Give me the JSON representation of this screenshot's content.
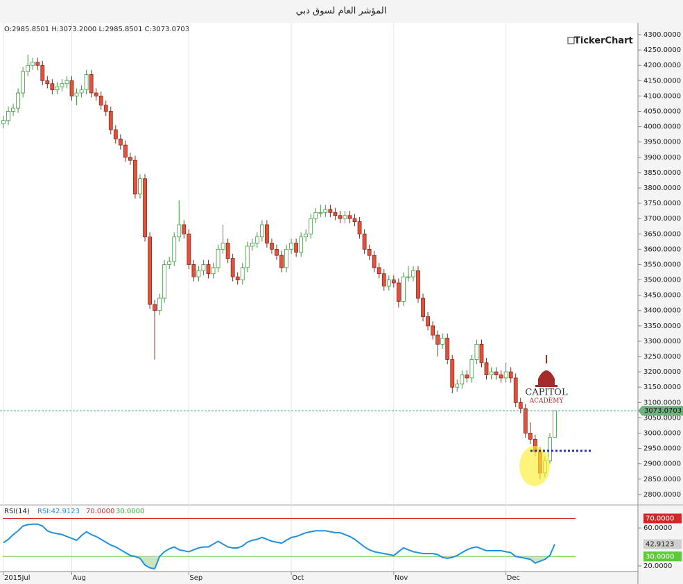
{
  "chart_data": [
    {
      "type": "candlestick",
      "title": "المؤشر العام لسوق دبي",
      "ohlc_label": "O:2985.8501 H:3073.2000 L:2985.8501 C:3073.0703",
      "watermark": "TickerChart",
      "logo_text": [
        "CAPITOL",
        "ACADEMY"
      ],
      "categories": [
        "2015Jul",
        null,
        null,
        null,
        null,
        null,
        null,
        null,
        null,
        null,
        null,
        null,
        null,
        null,
        "Aug",
        null,
        null,
        null,
        null,
        null,
        null,
        null,
        null,
        null,
        null,
        null,
        null,
        null,
        null,
        null,
        null,
        null,
        null,
        null,
        null,
        null,
        null,
        null,
        "Sep",
        null,
        null,
        null,
        null,
        null,
        null,
        null,
        null,
        null,
        null,
        null,
        null,
        null,
        null,
        null,
        null,
        null,
        null,
        null,
        null,
        "Oct",
        null,
        null,
        null,
        null,
        null,
        null,
        null,
        null,
        null,
        null,
        null,
        null,
        null,
        null,
        null,
        null,
        null,
        null,
        null,
        null,
        "Nov",
        null,
        null,
        null,
        null,
        null,
        null,
        null,
        null,
        null,
        null,
        null,
        null,
        null,
        null,
        null,
        null,
        null,
        null,
        null,
        null,
        null,
        null,
        "Dec",
        null,
        null,
        null,
        null,
        null,
        null,
        null,
        null,
        null,
        null
      ],
      "open": [
        4010,
        4020,
        4050,
        4060,
        4110,
        4180,
        4200,
        4210,
        4200,
        4150,
        4140,
        4120,
        4130,
        4140,
        4150,
        4100,
        4110,
        4120,
        4170,
        4110,
        4100,
        4070,
        4050,
        3990,
        3960,
        3940,
        3900,
        3890,
        3780,
        3830,
        3640,
        3420,
        3400,
        3440,
        3550,
        3560,
        3640,
        3680,
        3650,
        3550,
        3510,
        3530,
        3550,
        3520,
        3540,
        3600,
        3620,
        3570,
        3510,
        3500,
        3540,
        3610,
        3620,
        3640,
        3680,
        3620,
        3600,
        3580,
        3540,
        3600,
        3620,
        3590,
        3640,
        3650,
        3700,
        3720,
        3720,
        3730,
        3720,
        3710,
        3700,
        3710,
        3700,
        3690,
        3650,
        3600,
        3580,
        3540,
        3520,
        3480,
        3500,
        3490,
        3430,
        3510,
        3510,
        3530,
        3440,
        3380,
        3350,
        3320,
        3290,
        3310,
        3240,
        3150,
        3160,
        3190,
        3180,
        3240,
        3290,
        3230,
        3190,
        3200,
        3190,
        3180,
        3200,
        3180,
        3100,
        3080,
        3000,
        2980,
        2940,
        2870,
        2910,
        2985.8501
      ],
      "high": [
        4035,
        4065,
        4075,
        4125,
        4195,
        4235,
        4225,
        4225,
        4215,
        4165,
        4155,
        4145,
        4155,
        4165,
        4165,
        4125,
        4135,
        4185,
        4185,
        4125,
        4115,
        4085,
        4065,
        4005,
        3975,
        3955,
        3915,
        3905,
        3845,
        3845,
        3655,
        3435,
        3455,
        3565,
        3575,
        3655,
        3760,
        3695,
        3665,
        3565,
        3545,
        3565,
        3565,
        3555,
        3615,
        3680,
        3635,
        3585,
        3525,
        3555,
        3625,
        3635,
        3655,
        3695,
        3695,
        3635,
        3615,
        3595,
        3615,
        3635,
        3635,
        3655,
        3665,
        3715,
        3735,
        3745,
        3745,
        3745,
        3735,
        3725,
        3725,
        3725,
        3715,
        3705,
        3665,
        3615,
        3595,
        3555,
        3535,
        3515,
        3515,
        3505,
        3525,
        3545,
        3545,
        3545,
        3455,
        3395,
        3365,
        3335,
        3325,
        3325,
        3255,
        3175,
        3205,
        3205,
        3255,
        3305,
        3305,
        3245,
        3215,
        3215,
        3205,
        3230,
        3215,
        3195,
        3115,
        3095,
        3035,
        2995,
        2955,
        2925,
        3000,
        3073.2
      ],
      "low": [
        3995,
        4005,
        4035,
        4045,
        4095,
        4165,
        4185,
        4185,
        4135,
        4125,
        4105,
        4105,
        4115,
        4125,
        4085,
        4070,
        4095,
        4105,
        4095,
        4085,
        4055,
        4035,
        3975,
        3945,
        3925,
        3885,
        3875,
        3765,
        3765,
        3625,
        3405,
        3240,
        3385,
        3425,
        3535,
        3545,
        3625,
        3635,
        3535,
        3495,
        3495,
        3515,
        3505,
        3505,
        3525,
        3585,
        3555,
        3495,
        3485,
        3485,
        3525,
        3595,
        3605,
        3625,
        3605,
        3585,
        3565,
        3525,
        3525,
        3585,
        3575,
        3575,
        3625,
        3635,
        3685,
        3705,
        3705,
        3705,
        3695,
        3685,
        3685,
        3685,
        3675,
        3635,
        3585,
        3565,
        3525,
        3505,
        3465,
        3465,
        3475,
        3410,
        3415,
        3495,
        3495,
        3425,
        3365,
        3335,
        3305,
        3250,
        3275,
        3225,
        3130,
        3135,
        3145,
        3165,
        3165,
        3225,
        3215,
        3175,
        3175,
        3175,
        3165,
        3165,
        3165,
        3085,
        3065,
        2985,
        2965,
        2925,
        2850,
        2855,
        2900,
        2985.8501
      ],
      "close": [
        4020,
        4050,
        4060,
        4110,
        4180,
        4200,
        4210,
        4200,
        4150,
        4140,
        4120,
        4130,
        4140,
        4150,
        4100,
        4110,
        4120,
        4170,
        4110,
        4100,
        4070,
        4050,
        3990,
        3960,
        3940,
        3900,
        3890,
        3780,
        3830,
        3640,
        3420,
        3400,
        3440,
        3550,
        3560,
        3640,
        3680,
        3650,
        3550,
        3510,
        3530,
        3550,
        3520,
        3540,
        3600,
        3620,
        3570,
        3510,
        3500,
        3540,
        3610,
        3620,
        3640,
        3680,
        3620,
        3600,
        3580,
        3540,
        3600,
        3620,
        3590,
        3640,
        3650,
        3700,
        3720,
        3720,
        3730,
        3720,
        3710,
        3700,
        3710,
        3700,
        3690,
        3650,
        3600,
        3580,
        3540,
        3520,
        3480,
        3500,
        3490,
        3430,
        3510,
        3510,
        3530,
        3440,
        3380,
        3350,
        3320,
        3290,
        3310,
        3240,
        3150,
        3160,
        3190,
        3180,
        3240,
        3290,
        3230,
        3190,
        3200,
        3190,
        3180,
        3200,
        3180,
        3100,
        3080,
        3000,
        2980,
        2940,
        2870,
        2910,
        2985.8501,
        3073.0703
      ],
      "up_color": "#3a9a3a",
      "down_color": "#e8503a",
      "ylim": [
        2768,
        4334
      ],
      "yticks": [
        {
          "value": 2800,
          "label": "2800.0000"
        },
        {
          "value": 2850,
          "label": "2850.0000"
        },
        {
          "value": 2900,
          "label": "2900.0000"
        },
        {
          "value": 2950,
          "label": "2950.0000"
        },
        {
          "value": 3000,
          "label": "3000.0000"
        },
        {
          "value": 3050,
          "label": "3050.0000"
        },
        {
          "value": 3100,
          "label": "3100.0000"
        },
        {
          "value": 3150,
          "label": "3150.0000"
        },
        {
          "value": 3200,
          "label": "3200.0000"
        },
        {
          "value": 3250,
          "label": "3250.0000"
        },
        {
          "value": 3300,
          "label": "3300.0000"
        },
        {
          "value": 3350,
          "label": "3350.0000"
        },
        {
          "value": 3400,
          "label": "3400.0000"
        },
        {
          "value": 3450,
          "label": "3450.0000"
        },
        {
          "value": 3500,
          "label": "3500.0000"
        },
        {
          "value": 3550,
          "label": "3550.0000"
        },
        {
          "value": 3600,
          "label": "3600.0000"
        },
        {
          "value": 3650,
          "label": "3650.0000"
        },
        {
          "value": 3700,
          "label": "3700.0000"
        },
        {
          "value": 3750,
          "label": "3750.0000"
        },
        {
          "value": 3800,
          "label": "3800.0000"
        },
        {
          "value": 3850,
          "label": "3850.0000"
        },
        {
          "value": 3900,
          "label": "3900.0000"
        },
        {
          "value": 3950,
          "label": "3950.0000"
        },
        {
          "value": 4000,
          "label": "4000.0000"
        },
        {
          "value": 4050,
          "label": "4050.0000"
        },
        {
          "value": 4100,
          "label": "4100.0000"
        },
        {
          "value": 4150,
          "label": "4150.0000"
        },
        {
          "value": 4200,
          "label": "4200.0000"
        },
        {
          "value": 4250,
          "label": "4250.0000"
        },
        {
          "value": 4300,
          "label": "4300.0000"
        }
      ]
    },
    {
      "type": "line",
      "title": "RSI(14)",
      "legend_label": "RSI:42.9123",
      "series": [
        {
          "name": "RSI",
          "color": "#1f8fe0",
          "values": [
            44.5,
            48,
            53,
            57,
            62,
            63.5,
            64,
            64,
            62,
            57,
            55,
            54,
            53,
            51,
            49,
            47,
            52,
            56,
            53,
            51,
            48,
            45,
            42,
            40,
            37,
            34,
            31,
            30,
            28,
            21,
            18,
            17,
            30,
            35,
            38,
            40,
            37,
            36,
            35,
            37,
            39,
            40,
            40,
            43,
            46,
            43,
            40,
            39,
            39,
            41,
            45,
            47,
            48,
            50,
            48,
            46,
            45,
            44,
            47,
            50,
            51,
            53,
            55,
            56,
            57,
            57,
            57,
            56,
            55,
            55,
            53,
            51,
            48,
            44,
            40,
            37,
            35,
            34,
            33,
            32,
            31,
            35,
            39,
            37,
            35,
            34,
            33,
            33,
            33,
            32,
            29,
            28,
            29,
            31,
            34,
            37,
            39,
            40,
            38,
            36,
            36,
            36,
            36,
            35,
            34,
            30,
            29,
            28,
            27,
            23,
            25,
            27,
            31,
            42.9123
          ]
        }
      ],
      "levels": [
        {
          "value": 70,
          "label": "70.0000",
          "color": "#d62728"
        },
        {
          "value": 30,
          "label": "30.0000",
          "color": "#5cc83a"
        }
      ],
      "ylim": [
        15.6,
        81.3
      ],
      "yticks": [
        {
          "value": 20,
          "label": "20.0000"
        },
        {
          "value": 60,
          "label": "60.0000"
        }
      ]
    }
  ]
}
